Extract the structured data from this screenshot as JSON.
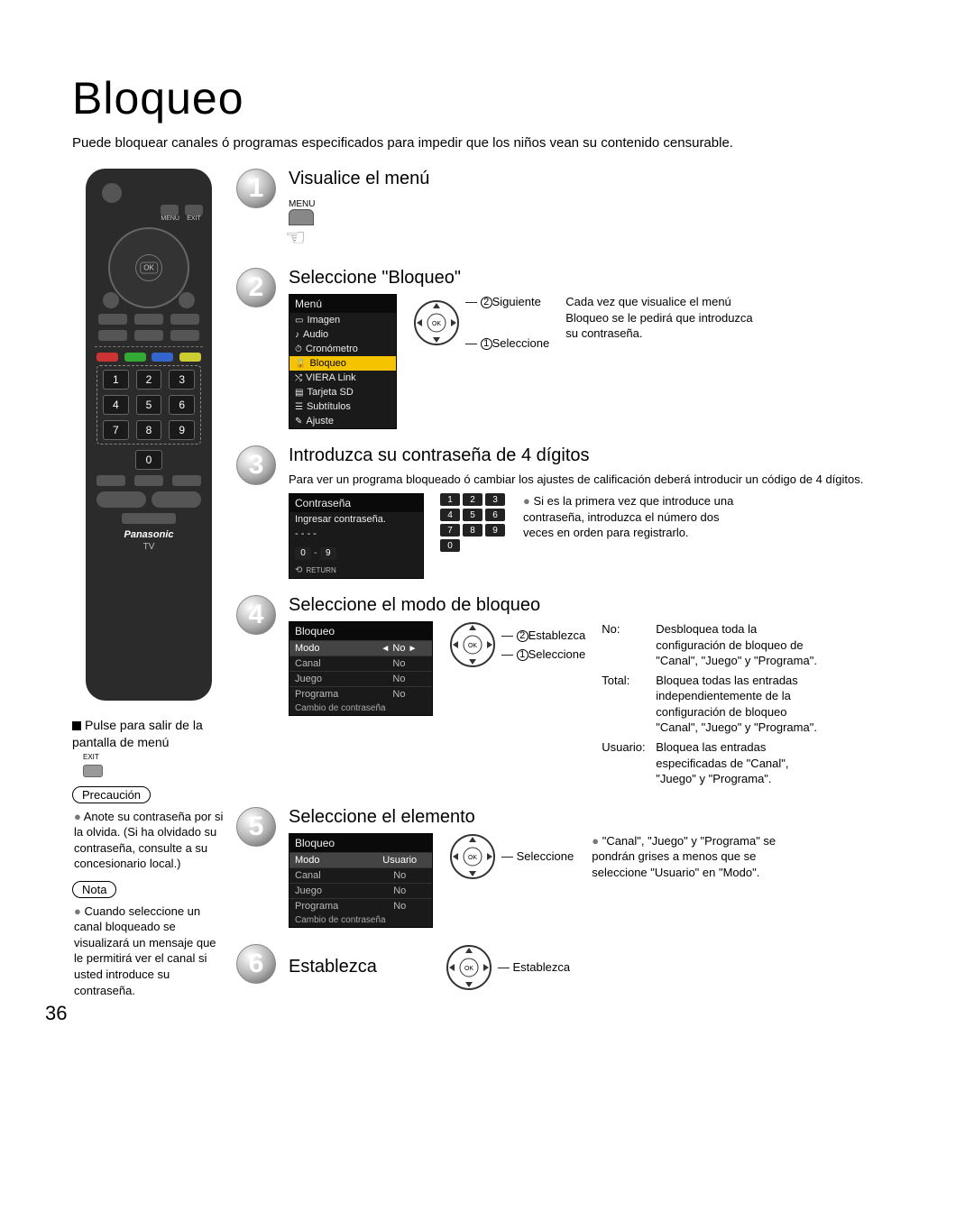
{
  "page_number": "36",
  "title": "Bloqueo",
  "intro": "Puede bloquear canales ó programas especificados para impedir que los niños vean su contenido censurable.",
  "remote": {
    "brand": "Panasonic",
    "model": "TV",
    "menu_label": "MENU",
    "exit_label": "EXIT",
    "ok_label": "OK"
  },
  "left": {
    "exit_heading": "Pulse para salir de la pantalla de menú",
    "exit_tiny": "EXIT",
    "precaucion": "Precaución",
    "precaucion_text": "Anote su contraseña por si la olvida. (Si ha olvidado su contraseña, consulte a su concesionario local.)",
    "nota": "Nota",
    "nota_text": "Cuando seleccione un canal bloqueado se visualizará un mensaje que le permitirá ver el canal si usted introduce su contraseña."
  },
  "steps": {
    "s1": {
      "title": "Visualice el menú",
      "menu_label": "MENU"
    },
    "s2": {
      "title": "Seleccione \"Bloqueo\"",
      "menu_header": "Menú",
      "menu_items": [
        "Imagen",
        "Audio",
        "Cronómetro",
        "Bloqueo",
        "VIERA Link",
        "Tarjeta SD",
        "Subtítulos",
        "Ajuste"
      ],
      "anno_next": "Siguiente",
      "anno_select": "Seleccione",
      "right_text": "Cada vez que visualice el menú Bloqueo se le pedirá que introduzca su contraseña."
    },
    "s3": {
      "title": "Introduzca su contraseña de 4 dígitos",
      "sub": "Para ver un programa bloqueado ó cambiar los ajustes de calificación deberá introducir un código de 4 dígitos.",
      "panel_title": "Contraseña",
      "panel_prompt": "Ingresar contraseña.",
      "panel_dashes": "- - - -",
      "return_label": "RETURN",
      "range_a": "0",
      "range_b": "9",
      "right_text": "Si es la primera vez que introduce una contraseña, introduzca el número dos veces en orden para registrarlo."
    },
    "s4": {
      "title": "Seleccione el modo de bloqueo",
      "panel_title": "Bloqueo",
      "rows": [
        {
          "l": "Modo",
          "v": "No",
          "hl": true,
          "arrows": true
        },
        {
          "l": "Canal",
          "v": "No"
        },
        {
          "l": "Juego",
          "v": "No"
        },
        {
          "l": "Programa",
          "v": "No"
        }
      ],
      "footer": "Cambio de contraseña",
      "anno_set": "Establezca",
      "anno_select": "Seleccione",
      "defs": {
        "no_l": "No:",
        "no_v": "Desbloquea toda la configuración de bloqueo de \"Canal\", \"Juego\" y \"Programa\".",
        "total_l": "Total:",
        "total_v": "Bloquea todas las entradas independientemente de la configuración de bloqueo \"Canal\", \"Juego\" y \"Programa\".",
        "user_l": "Usuario:",
        "user_v": "Bloquea las entradas especificadas de \"Canal\", \"Juego\" y \"Programa\"."
      }
    },
    "s5": {
      "title": "Seleccione el elemento",
      "panel_title": "Bloqueo",
      "rows": [
        {
          "l": "Modo",
          "v": "Usuario",
          "hl": true
        },
        {
          "l": "Canal",
          "v": "No"
        },
        {
          "l": "Juego",
          "v": "No"
        },
        {
          "l": "Programa",
          "v": "No"
        }
      ],
      "footer": "Cambio de contraseña",
      "anno_select": "Seleccione",
      "right_text": "\"Canal\", \"Juego\" y \"Programa\" se pondrán grises a menos que se seleccione \"Usuario\" en \"Modo\"."
    },
    "s6": {
      "title": "Establezca",
      "anno_set": "Establezca"
    }
  }
}
